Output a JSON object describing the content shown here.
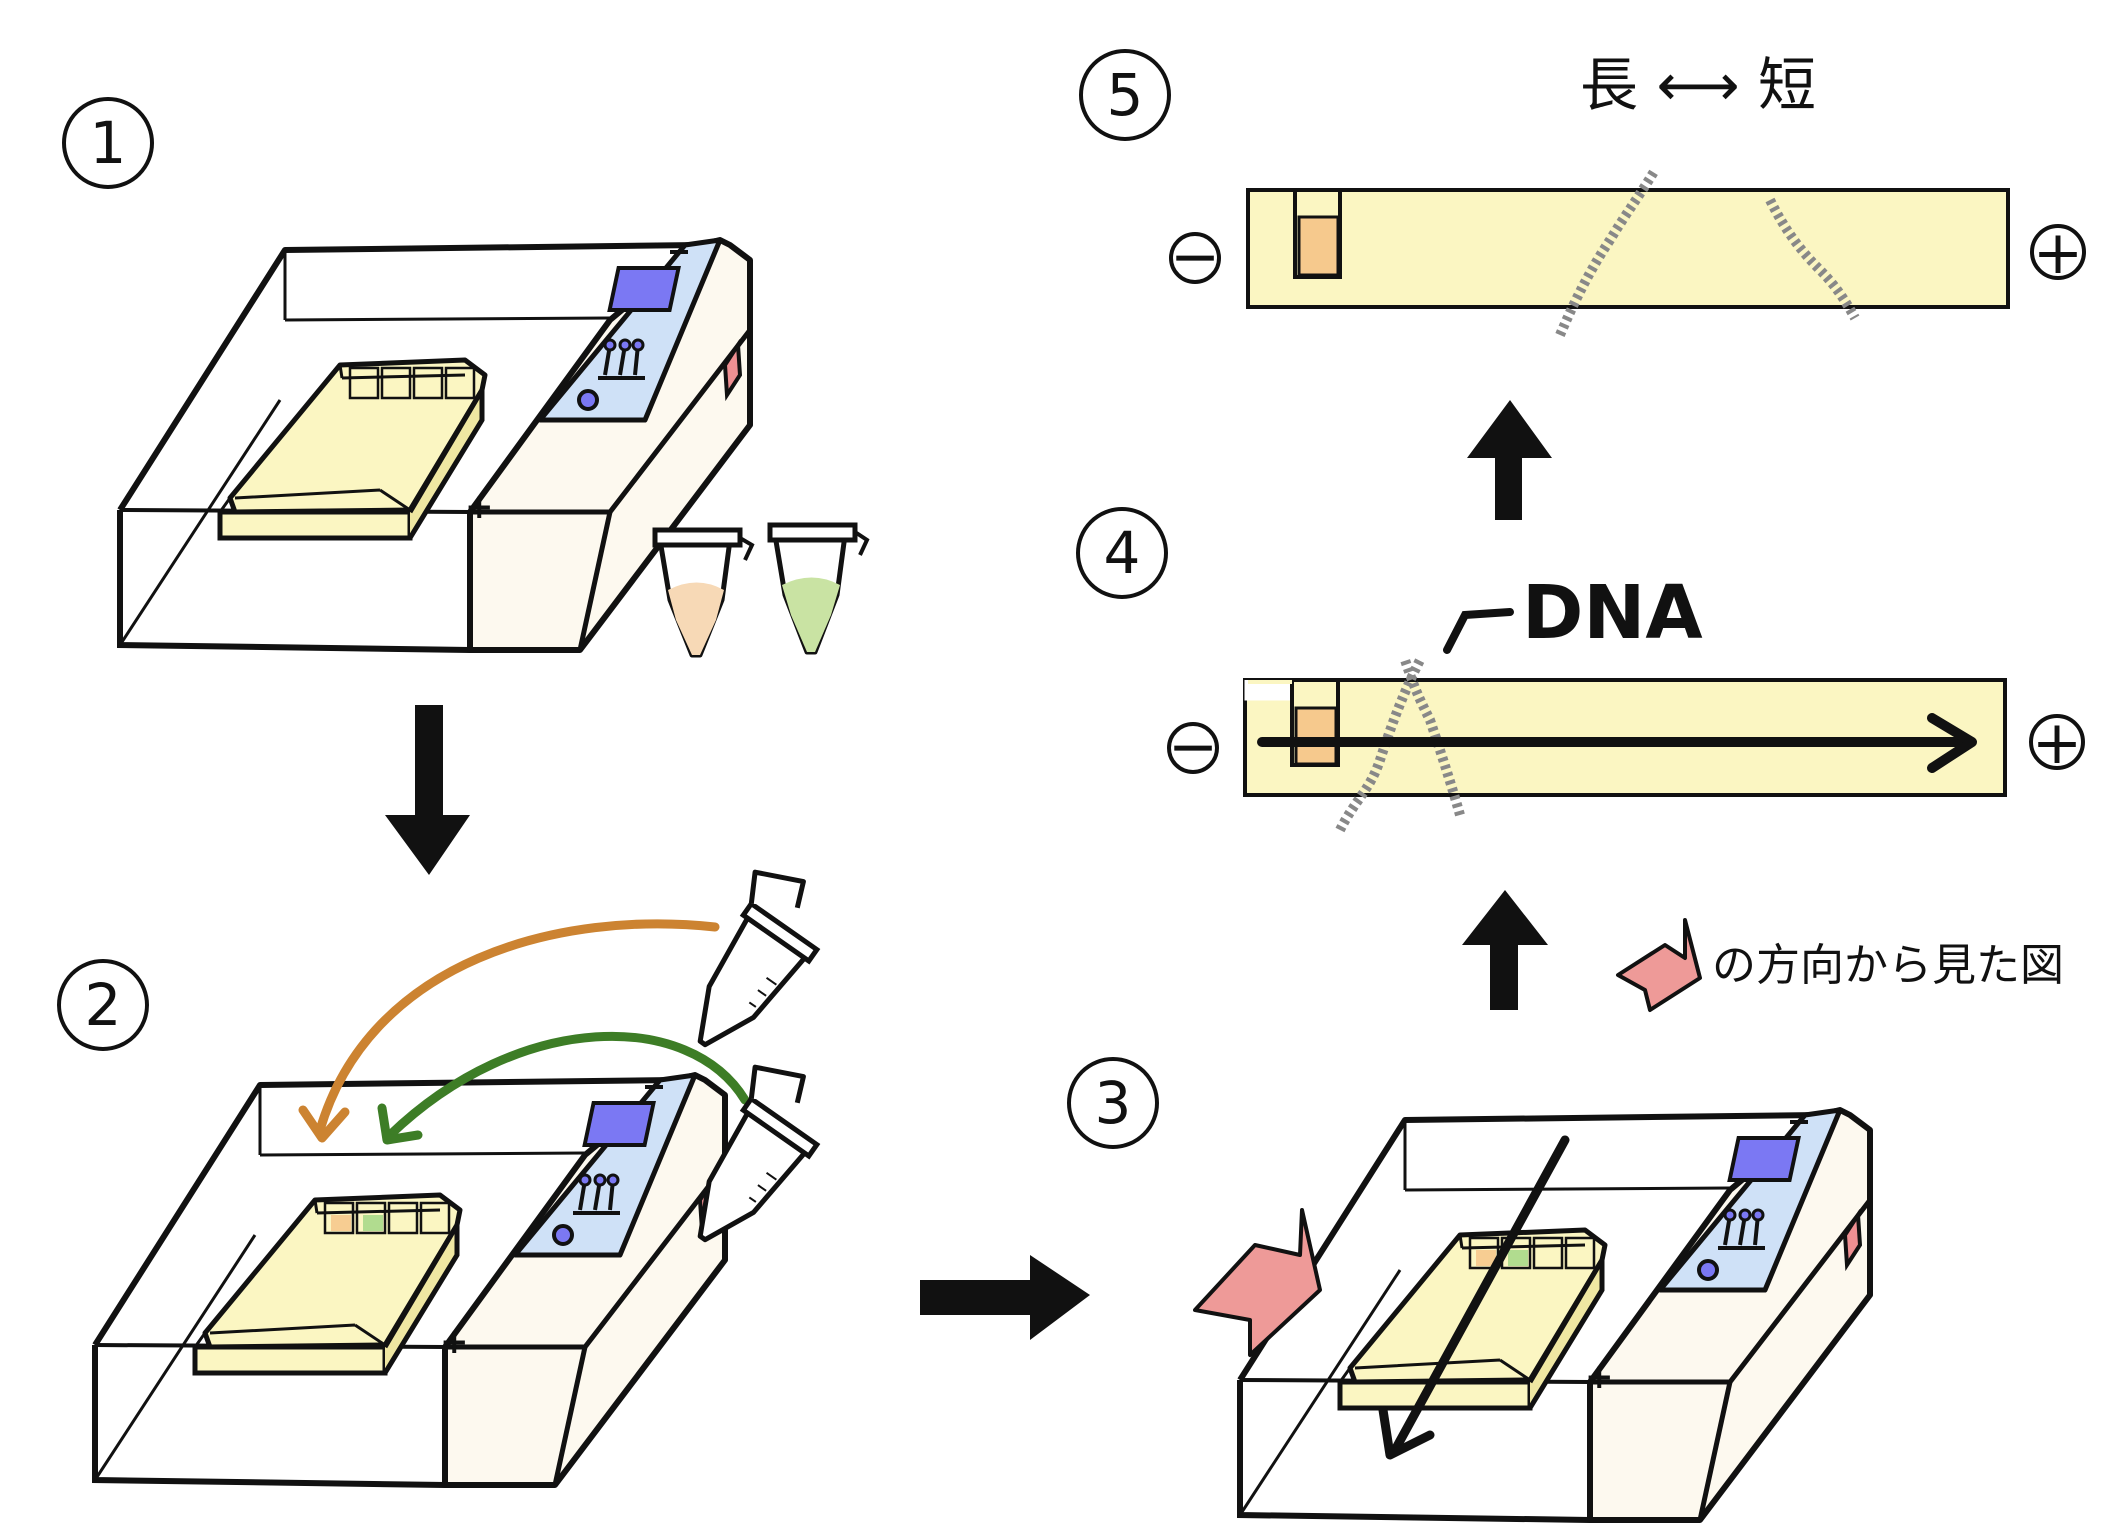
{
  "steps": [
    {
      "number": "1"
    },
    {
      "number": "2"
    },
    {
      "number": "3"
    },
    {
      "number": "4"
    },
    {
      "number": "5"
    }
  ],
  "gel_top": {
    "title": "長 ⟷ 短",
    "minus": "−",
    "plus": "+"
  },
  "gel_bottom": {
    "minus": "−",
    "plus": "+",
    "dna_label": "DNA"
  },
  "caption_direction": "の方向から見た図",
  "device_terminal_plus": "+",
  "colors": {
    "gel": "#fbf6c2",
    "gel_dark": "#efe7a2",
    "device_body": "#fdf9ef",
    "panel": "#cfe1f7",
    "screen": "#7b78f3",
    "red_indicator": "#ee8f92",
    "sample_orange": "#f7d9b6",
    "sample_green": "#c9e3a3",
    "arrow_orange": "#cc8331",
    "arrow_green": "#3d7d26",
    "pink_arrow": "#ee9a98",
    "well_orange": "#f6c98d"
  }
}
